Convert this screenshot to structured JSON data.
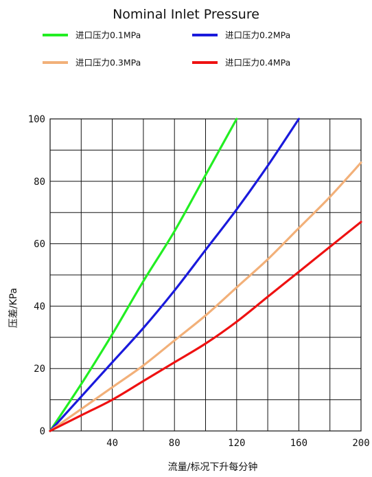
{
  "chart_data": {
    "type": "line",
    "title": "Nominal Inlet Pressure",
    "xlabel": "流量/标况下升每分钟",
    "ylabel": "压差/KPa",
    "xlim": [
      0,
      200
    ],
    "ylim": [
      0,
      100
    ],
    "x_ticks": [
      "40",
      "80",
      "120",
      "160",
      "200"
    ],
    "y_ticks": [
      "0",
      "20",
      "40",
      "60",
      "80",
      "100"
    ],
    "grid": true,
    "legend_position": "top",
    "series": [
      {
        "name": "进口压力0.1MPa",
        "color": "#22ee22",
        "points": [
          [
            0,
            0
          ],
          [
            20,
            15
          ],
          [
            40,
            31
          ],
          [
            60,
            48
          ],
          [
            80,
            64
          ],
          [
            100,
            82
          ],
          [
            120,
            100
          ]
        ]
      },
      {
        "name": "进口压力0.2MPa",
        "color": "#1a1adc",
        "points": [
          [
            0,
            0
          ],
          [
            20,
            11
          ],
          [
            40,
            22
          ],
          [
            60,
            33
          ],
          [
            80,
            45
          ],
          [
            100,
            58
          ],
          [
            120,
            71
          ],
          [
            140,
            85
          ],
          [
            160,
            100
          ]
        ]
      },
      {
        "name": "进口压力0.3MPa",
        "color": "#f2b079",
        "points": [
          [
            0,
            0
          ],
          [
            20,
            7
          ],
          [
            40,
            14
          ],
          [
            60,
            21
          ],
          [
            80,
            29
          ],
          [
            100,
            37
          ],
          [
            120,
            46
          ],
          [
            140,
            55
          ],
          [
            160,
            65
          ],
          [
            180,
            75
          ],
          [
            200,
            86
          ]
        ]
      },
      {
        "name": "进口压力0.4MPa",
        "color": "#ee1111",
        "points": [
          [
            0,
            0
          ],
          [
            20,
            5
          ],
          [
            40,
            10
          ],
          [
            60,
            16
          ],
          [
            80,
            22
          ],
          [
            100,
            28
          ],
          [
            120,
            35
          ],
          [
            140,
            43
          ],
          [
            160,
            51
          ],
          [
            180,
            59
          ],
          [
            200,
            67
          ]
        ]
      }
    ]
  }
}
